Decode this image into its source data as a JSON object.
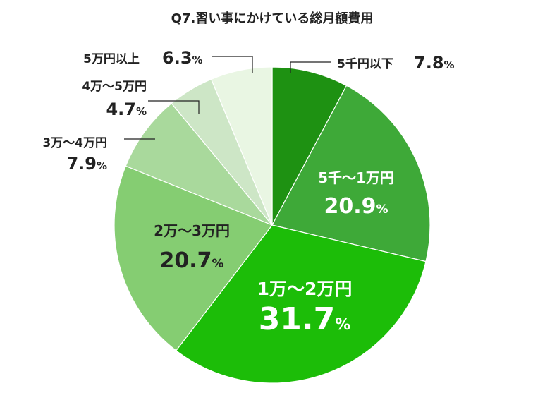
{
  "chart_data": {
    "type": "pie",
    "title": "Q7.習い事にかけている総月額費用",
    "unit": "%",
    "slices": [
      {
        "label": "5千円以下",
        "value": 7.8,
        "value_text": "7.8",
        "color": "#1e9112"
      },
      {
        "label": "5千～1万円",
        "value": 20.9,
        "value_text": "20.9",
        "color": "#3ea938"
      },
      {
        "label": "1万～2万円",
        "value": 31.7,
        "value_text": "31.7",
        "color": "#1cbd08"
      },
      {
        "label": "2万～3万円",
        "value": 20.7,
        "value_text": "20.7",
        "color": "#85cd72"
      },
      {
        "label": "3万～4万円",
        "value": 7.9,
        "value_text": "7.9",
        "color": "#a9d99c"
      },
      {
        "label": "4万～5万円",
        "value": 4.7,
        "value_text": "4.7",
        "color": "#cde6c6"
      },
      {
        "label": "5万円以上",
        "value": 6.3,
        "value_text": "6.3",
        "color": "#e9f6e3"
      }
    ]
  }
}
